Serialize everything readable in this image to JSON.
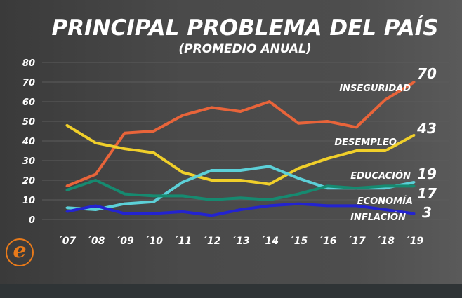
{
  "chart_data": {
    "type": "line",
    "title": "PRINCIPAL PROBLEMA DEL PAÍS",
    "subtitle": "(PROMEDIO ANUAL)",
    "categories": [
      "´07",
      "´08",
      "´09",
      "´10",
      "´11",
      "´12",
      "´13",
      "´14",
      "´15",
      "´16",
      "´17",
      "´18",
      "´19"
    ],
    "ylim": [
      0,
      80
    ],
    "yticks": [
      0,
      10,
      20,
      30,
      40,
      50,
      60,
      70,
      80
    ],
    "grid": true,
    "series": [
      {
        "name": "INSEGURIDAD",
        "color": "#e8643a",
        "values": [
          17,
          23,
          44,
          45,
          53,
          57,
          55,
          60,
          49,
          50,
          47,
          61,
          70
        ],
        "end_label": "70"
      },
      {
        "name": "DESEMPLEO",
        "color": "#f0cf2a",
        "values": [
          48,
          39,
          36,
          34,
          24,
          20,
          20,
          18,
          26,
          31,
          35,
          35,
          43
        ],
        "end_label": "43"
      },
      {
        "name": "EDUCACIÓN",
        "color": "#5cd0d8",
        "values": [
          6,
          5,
          8,
          9,
          19,
          25,
          25,
          27,
          21,
          16,
          16,
          16,
          19
        ],
        "end_label": "19"
      },
      {
        "name": "ECONOMÍA",
        "color": "#168a70",
        "values": [
          15,
          20,
          13,
          12,
          12,
          10,
          11,
          10,
          13,
          17,
          16,
          17,
          17
        ],
        "end_label": "17"
      },
      {
        "name": "INFLACIÓN",
        "color": "#2323d0",
        "values": [
          4,
          7,
          3,
          3,
          4,
          2,
          5,
          7,
          8,
          7,
          7,
          5,
          3
        ],
        "end_label": "3"
      }
    ]
  },
  "logo": {
    "text": "e"
  }
}
